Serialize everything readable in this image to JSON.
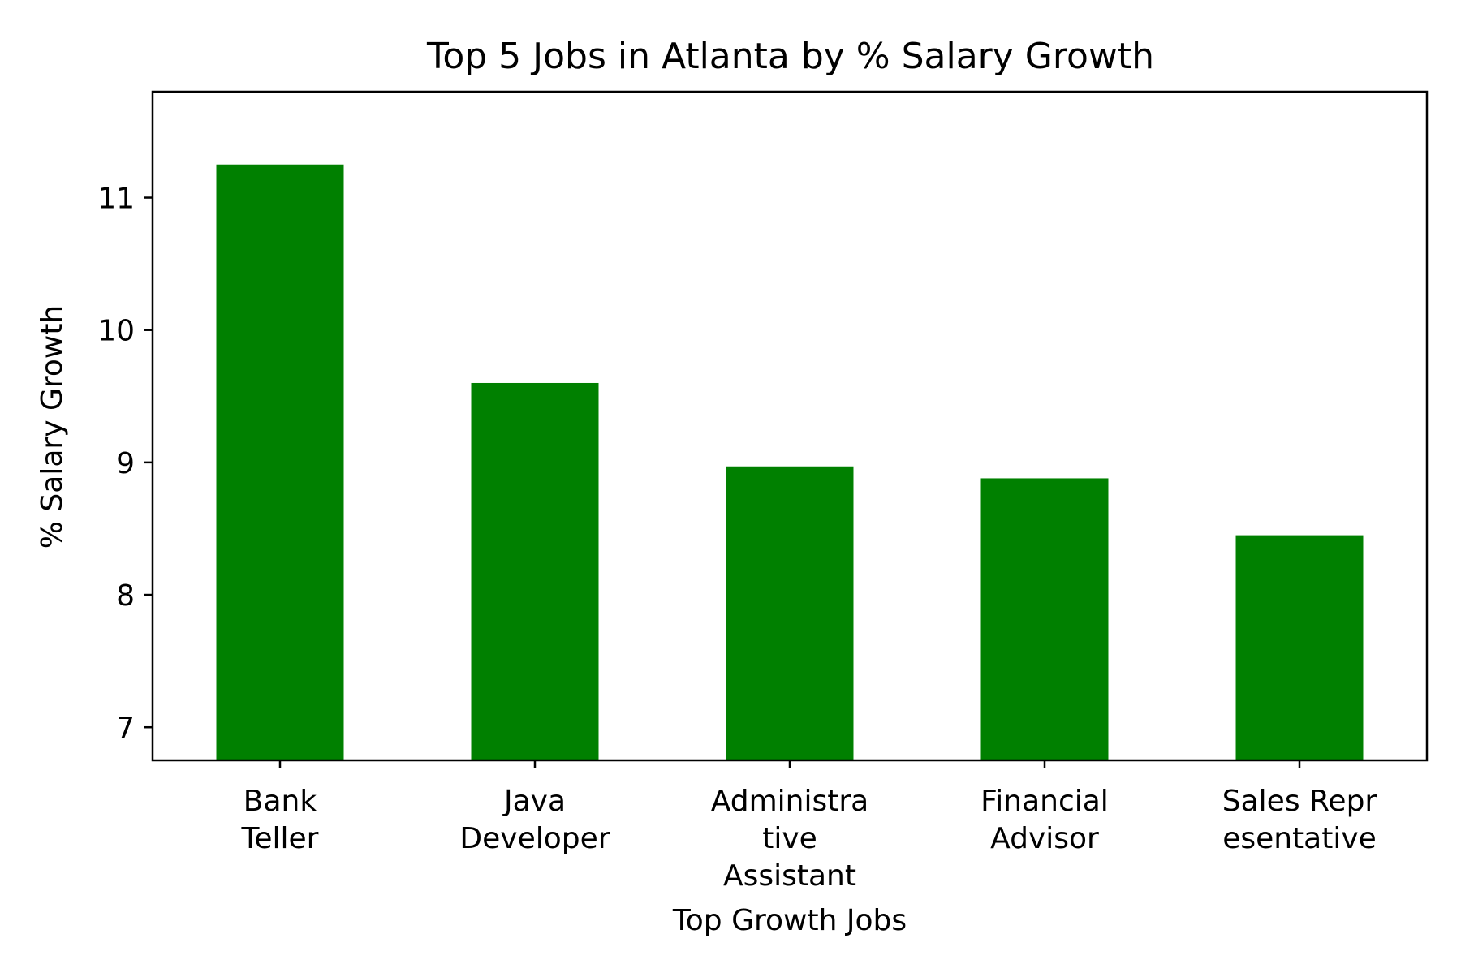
{
  "chart_data": {
    "type": "bar",
    "title": "Top 5 Jobs in Atlanta by % Salary Growth",
    "xlabel": "Top Growth Jobs",
    "ylabel": "% Salary Growth",
    "categories": [
      [
        "Bank",
        "Teller"
      ],
      [
        "Java",
        "Developer"
      ],
      [
        "Administra",
        "tive",
        "Assistant"
      ],
      [
        "Financial",
        "Advisor"
      ],
      [
        "Sales Repr",
        "esentative"
      ]
    ],
    "values": [
      11.25,
      9.6,
      8.97,
      8.88,
      8.45
    ],
    "ylim": [
      6.75,
      11.8
    ],
    "yticks": [
      7,
      8,
      9,
      10,
      11
    ],
    "bar_color": "#008000",
    "grid": false,
    "legend": false
  }
}
